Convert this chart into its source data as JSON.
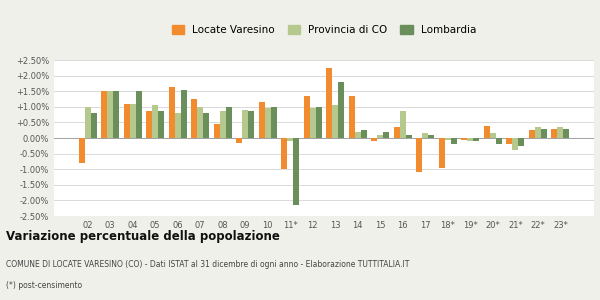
{
  "categories": [
    "02",
    "03",
    "04",
    "05",
    "06",
    "07",
    "08",
    "09",
    "10",
    "11*",
    "12",
    "13",
    "14",
    "15",
    "16",
    "17",
    "18*",
    "19*",
    "20*",
    "21*",
    "22*",
    "23*"
  ],
  "locate_varesino": [
    -0.008,
    0.015,
    0.011,
    0.0085,
    0.0165,
    0.0125,
    0.0045,
    -0.0015,
    0.0115,
    -0.01,
    0.0135,
    0.0225,
    0.0135,
    -0.001,
    0.0035,
    -0.011,
    -0.0095,
    -0.0005,
    0.004,
    -0.002,
    0.0025,
    0.003
  ],
  "provincia_co": [
    0.01,
    0.015,
    0.011,
    0.0105,
    0.008,
    0.01,
    0.0085,
    0.009,
    0.0095,
    -0.001,
    0.0095,
    0.0105,
    0.002,
    0.001,
    0.0085,
    0.0015,
    -0.0005,
    -0.001,
    0.0015,
    -0.004,
    0.0035,
    0.0035
  ],
  "lombardia": [
    0.008,
    0.015,
    0.015,
    0.0085,
    0.0155,
    0.008,
    0.01,
    0.0085,
    0.01,
    -0.0215,
    0.01,
    0.018,
    0.0025,
    0.002,
    0.001,
    0.001,
    -0.002,
    -0.001,
    -0.002,
    -0.0025,
    0.003,
    0.003
  ],
  "color_locate": "#f28a2e",
  "color_provincia": "#b5c98e",
  "color_lombardia": "#6a8f5a",
  "ylim": [
    -0.025,
    0.025
  ],
  "yticks": [
    -0.025,
    -0.02,
    -0.015,
    -0.01,
    -0.005,
    0.0,
    0.005,
    0.01,
    0.015,
    0.02,
    0.025
  ],
  "ytick_labels": [
    "-2.50%",
    "-2.00%",
    "-1.50%",
    "-1.00%",
    "-0.50%",
    "0.00%",
    "+0.50%",
    "+1.00%",
    "+1.50%",
    "+2.00%",
    "+2.50%"
  ],
  "title": "Variazione percentuale della popolazione",
  "subtitle": "COMUNE DI LOCATE VARESINO (CO) - Dati ISTAT al 31 dicembre di ogni anno - Elaborazione TUTTITALIA.IT",
  "footnote": "(*) post-censimento",
  "legend_labels": [
    "Locate Varesino",
    "Provincia di CO",
    "Lombardia"
  ],
  "bg_color": "#f0f0eb",
  "plot_bg": "#ffffff"
}
